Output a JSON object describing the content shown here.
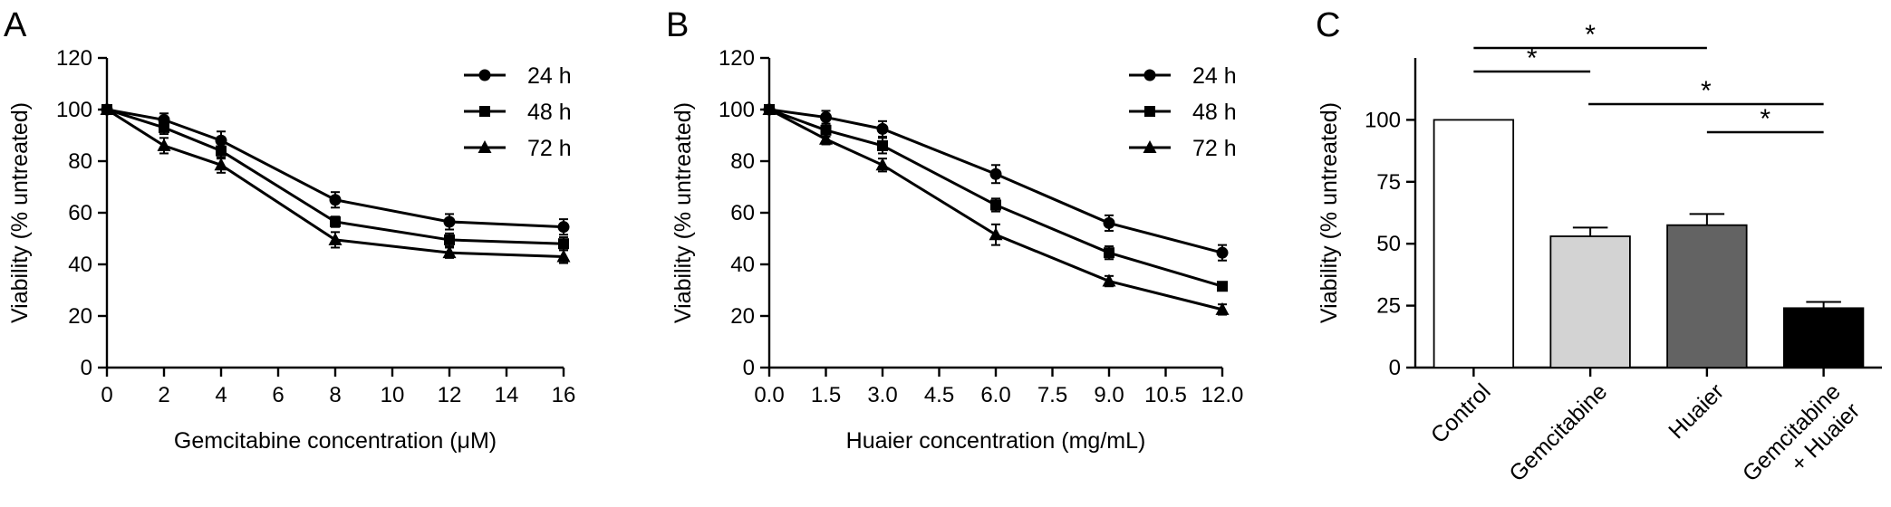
{
  "chart_data": [
    {
      "panel_label": "A",
      "type": "line",
      "xlabel": "Gemcitabine concentration (μM)",
      "ylabel": "Viability (% untreated)",
      "xlim": [
        0,
        16
      ],
      "ylim": [
        0,
        120
      ],
      "xticks": [
        0,
        2,
        4,
        6,
        8,
        10,
        12,
        14,
        16
      ],
      "xtick_labels": [
        "0",
        "2",
        "4",
        "6",
        "8",
        "10",
        "12",
        "14",
        "16"
      ],
      "yticks": [
        0,
        20,
        40,
        60,
        80,
        100,
        120
      ],
      "ytick_labels": [
        "0",
        "20",
        "40",
        "60",
        "80",
        "100",
        "120"
      ],
      "legend_position": "top-right",
      "x": [
        0,
        2,
        4,
        8,
        12,
        16
      ],
      "series": [
        {
          "name": "24 h",
          "marker": "circle",
          "values": [
            100,
            96,
            88,
            65,
            56.5,
            54.5
          ],
          "errors": [
            0,
            2.5,
            3.5,
            3,
            3,
            3
          ]
        },
        {
          "name": "48 h",
          "marker": "square",
          "values": [
            100,
            93,
            84,
            56.5,
            49.5,
            48
          ],
          "errors": [
            0,
            2.5,
            3,
            2,
            2.5,
            2.5
          ]
        },
        {
          "name": "72 h",
          "marker": "triangle",
          "values": [
            100,
            86,
            78.5,
            49.5,
            44.5,
            43
          ],
          "errors": [
            0,
            3,
            3,
            3,
            2,
            2.5
          ]
        }
      ]
    },
    {
      "panel_label": "B",
      "type": "line",
      "xlabel": "Huaier concentration (mg/mL)",
      "ylabel": "Viability (% untreated)",
      "xlim": [
        0,
        12
      ],
      "ylim": [
        0,
        120
      ],
      "xticks": [
        0,
        1.5,
        3,
        4.5,
        6,
        7.5,
        9,
        10.5,
        12
      ],
      "xtick_labels": [
        "0.0",
        "1.5",
        "3.0",
        "4.5",
        "6.0",
        "7.5",
        "9.0",
        "10.5",
        "12.0"
      ],
      "yticks": [
        0,
        20,
        40,
        60,
        80,
        100,
        120
      ],
      "ytick_labels": [
        "0",
        "20",
        "40",
        "60",
        "80",
        "100",
        "120"
      ],
      "legend_position": "top-right",
      "x": [
        0,
        1.5,
        3,
        6,
        9,
        12
      ],
      "series": [
        {
          "name": "24 h",
          "marker": "circle",
          "values": [
            100,
            97,
            92.5,
            75,
            56,
            44.5
          ],
          "errors": [
            0,
            2.5,
            3,
            3.5,
            3,
            3
          ]
        },
        {
          "name": "48 h",
          "marker": "square",
          "values": [
            100,
            92,
            86,
            63,
            44.5,
            31.5
          ],
          "errors": [
            0,
            2.5,
            3,
            2.5,
            2.5,
            1
          ]
        },
        {
          "name": "72 h",
          "marker": "triangle",
          "values": [
            100,
            88.5,
            78.5,
            51.5,
            33.5,
            22.5
          ],
          "errors": [
            0,
            2,
            2.5,
            4,
            2,
            2
          ]
        }
      ]
    },
    {
      "panel_label": "C",
      "type": "bar",
      "xlabel": "",
      "ylabel": "Viability (% untreated)",
      "ylim": [
        0,
        125
      ],
      "yticks": [
        0,
        25,
        50,
        75,
        100
      ],
      "ytick_labels": [
        "0",
        "25",
        "50",
        "75",
        "100"
      ],
      "categories": [
        "Control",
        "Gemcitabine",
        "Huaier",
        "Gemcitabine\n+ Huaier"
      ],
      "values": [
        100,
        53,
        57.5,
        24
      ],
      "errors": [
        0,
        3.5,
        4.5,
        2.5
      ],
      "colors": [
        "#ffffff",
        "#d3d3d3",
        "#636363",
        "#000000"
      ],
      "significance": [
        {
          "from": 0,
          "to": 2,
          "level": 1,
          "label": "*"
        },
        {
          "from": 0,
          "to": 1,
          "level": 0,
          "label": "*"
        },
        {
          "from": 1,
          "to": 3,
          "level": 1,
          "label": "*"
        },
        {
          "from": 2,
          "to": 3,
          "level": 0,
          "label": "*"
        }
      ]
    }
  ]
}
